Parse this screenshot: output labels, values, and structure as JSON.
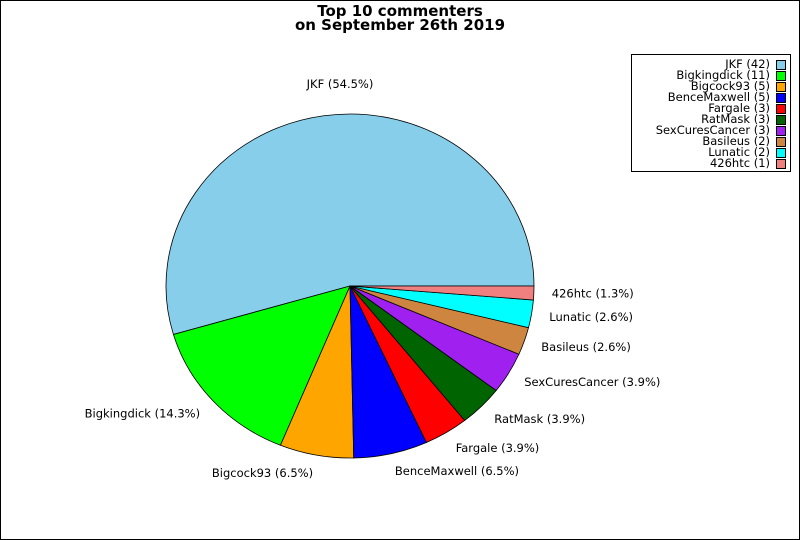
{
  "chart_data": {
    "type": "pie",
    "title": "Top 10 commenters",
    "subtitle": "on September 26th 2019",
    "slices": [
      {
        "label": "JKF",
        "value": 42,
        "percent_label": "JKF (54.5%)",
        "legend_label": "JKF (42)",
        "color": "#87CEEB"
      },
      {
        "label": "Bigkingdick",
        "value": 11,
        "percent_label": "Bigkingdick (14.3%)",
        "legend_label": "Bigkingdick (11)",
        "color": "#00FF00"
      },
      {
        "label": "Bigcock93",
        "value": 5,
        "percent_label": "Bigcock93 (6.5%)",
        "legend_label": "Bigcock93 (5)",
        "color": "#FFA500"
      },
      {
        "label": "BenceMaxwell",
        "value": 5,
        "percent_label": "BenceMaxwell (6.5%)",
        "legend_label": "BenceMaxwell (5)",
        "color": "#0000FF"
      },
      {
        "label": "Fargale",
        "value": 3,
        "percent_label": "Fargale (3.9%)",
        "legend_label": "Fargale (3)",
        "color": "#FF0000"
      },
      {
        "label": "RatMask",
        "value": 3,
        "percent_label": "RatMask (3.9%)",
        "legend_label": "RatMask (3)",
        "color": "#006400"
      },
      {
        "label": "SexCuresCancer",
        "value": 3,
        "percent_label": "SexCuresCancer (3.9%)",
        "legend_label": "SexCuresCancer (3)",
        "color": "#A020F0"
      },
      {
        "label": "Basileus",
        "value": 2,
        "percent_label": "Basileus (2.6%)",
        "legend_label": "Basileus (2)",
        "color": "#CD853F"
      },
      {
        "label": "Lunatic",
        "value": 2,
        "percent_label": "Lunatic (2.6%)",
        "legend_label": "Lunatic (2)",
        "color": "#00FFFF"
      },
      {
        "label": "426htc",
        "value": 1,
        "percent_label": "426htc (1.3%)",
        "legend_label": "426htc (1)",
        "color": "#F08080"
      }
    ],
    "legend_position": "top-right"
  }
}
